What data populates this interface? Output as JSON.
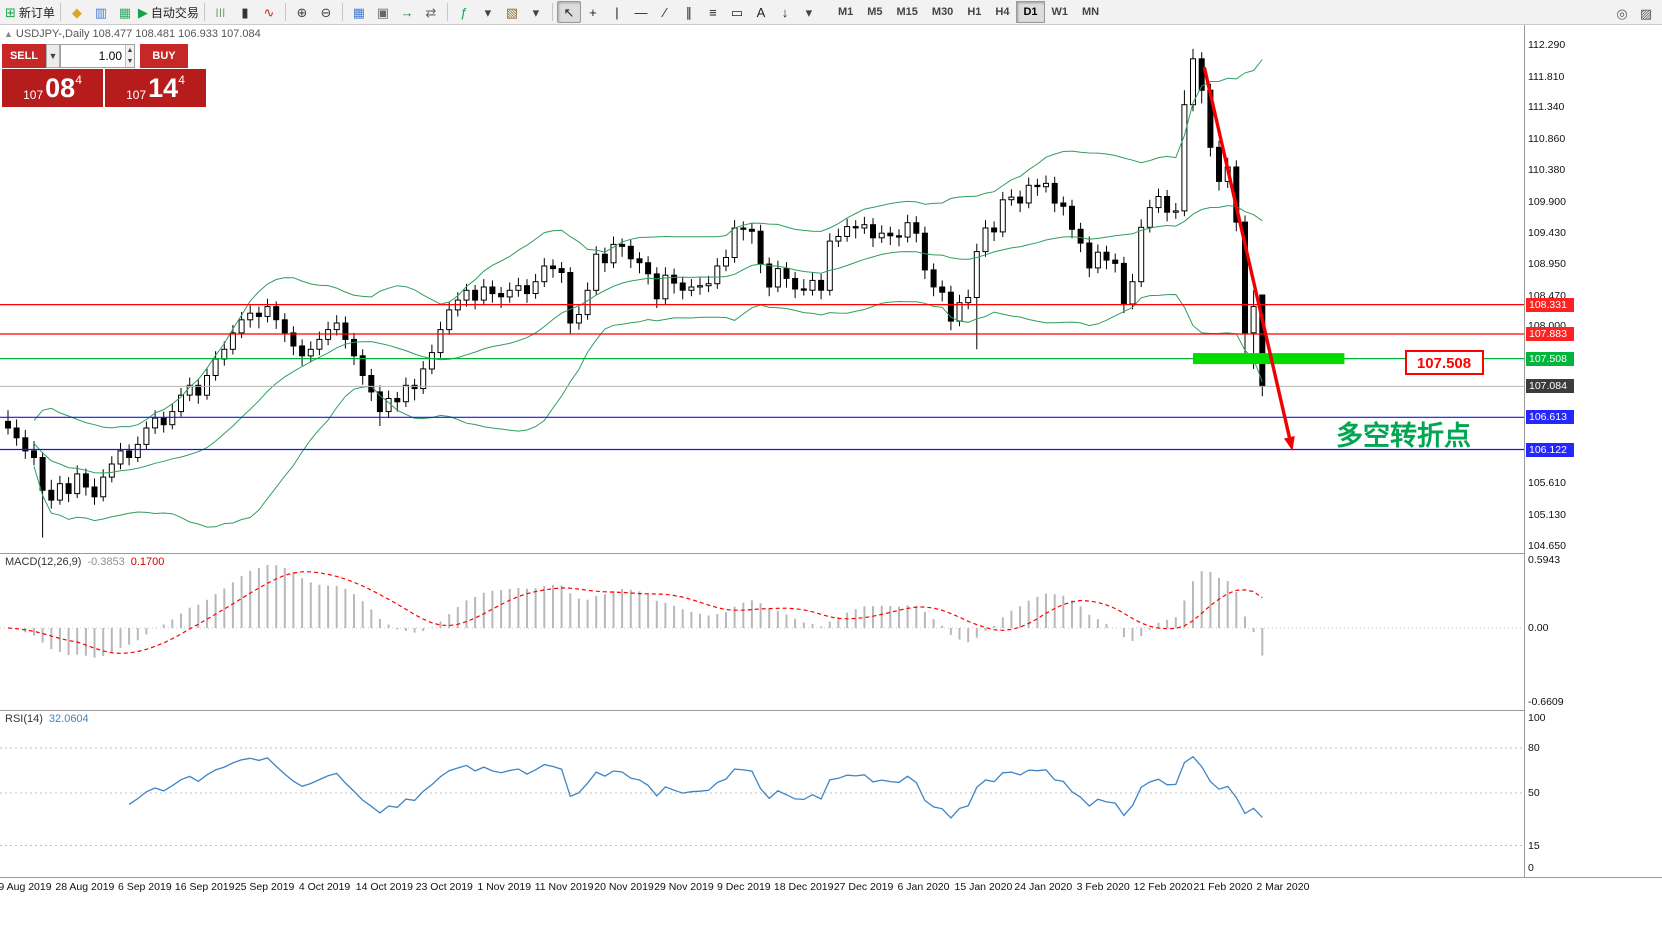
{
  "toolbar": {
    "new_order": {
      "icon_glyph": "⊞",
      "icon_color": "#18a348",
      "label": "新订单"
    },
    "autotrading": {
      "icon_glyph": "▶",
      "icon_color": "#18a348",
      "label": "自动交易"
    },
    "icon_groups": [
      [
        {
          "name": "profile-icon",
          "glyph": "◆",
          "color": "#d9a62b"
        },
        {
          "name": "market-watch-icon",
          "glyph": "▥",
          "color": "#4a7fd4"
        },
        {
          "name": "data-window-icon",
          "glyph": "▦",
          "color": "#3aa66a"
        }
      ],
      [
        {
          "name": "bar-chart-icon",
          "glyph": "|||",
          "color": "#2e7d32"
        },
        {
          "name": "candlestick-icon",
          "glyph": "▮",
          "color": "#333333"
        },
        {
          "name": "line-chart-icon",
          "glyph": "∿",
          "color": "#c62828"
        }
      ],
      [
        {
          "name": "zoom-in-icon",
          "glyph": "⊕",
          "color": "#444444"
        },
        {
          "name": "zoom-out-icon",
          "glyph": "⊖",
          "color": "#444444"
        }
      ],
      [
        {
          "name": "tile-windows-icon",
          "glyph": "▦",
          "color": "#4a7fd4"
        },
        {
          "name": "cascade-windows-icon",
          "glyph": "▣",
          "color": "#666666"
        },
        {
          "name": "auto-scroll-icon",
          "glyph": "→",
          "color": "#2e7d32"
        },
        {
          "name": "chart-shift-icon",
          "glyph": "⇄",
          "color": "#666666"
        }
      ],
      [
        {
          "name": "indicators-icon",
          "glyph": "ƒ",
          "color": "#18a348"
        },
        {
          "name": "indicators-dropdown-icon",
          "glyph": "▾",
          "color": "#444444"
        },
        {
          "name": "templates-icon",
          "glyph": "▧",
          "color": "#8a6d3b"
        },
        {
          "name": "templates-dropdown-icon",
          "glyph": "▾",
          "color": "#444444"
        }
      ],
      [
        {
          "name": "cursor-icon",
          "glyph": "↖",
          "color": "#222222",
          "active": true
        },
        {
          "name": "crosshair-icon",
          "glyph": "+",
          "color": "#222222"
        },
        {
          "name": "vertical-line-icon",
          "glyph": "|",
          "color": "#222222"
        },
        {
          "name": "horizontal-line-icon",
          "glyph": "—",
          "color": "#222222"
        },
        {
          "name": "trendline-icon",
          "glyph": "∕",
          "color": "#222222"
        },
        {
          "name": "channel-icon",
          "glyph": "∥",
          "color": "#222222"
        },
        {
          "name": "fibonacci-icon",
          "glyph": "≡",
          "color": "#222222"
        },
        {
          "name": "shapes-icon",
          "glyph": "▭",
          "color": "#222222"
        },
        {
          "name": "text-icon",
          "glyph": "A",
          "color": "#222222"
        },
        {
          "name": "arrows-icon",
          "glyph": "↓",
          "color": "#222222"
        },
        {
          "name": "objects-dropdown-icon",
          "glyph": "▾",
          "color": "#444444"
        }
      ]
    ],
    "right_icons": [
      {
        "name": "search-icon",
        "glyph": "◎",
        "color": "#555555"
      },
      {
        "name": "notes-icon",
        "glyph": "▨",
        "color": "#555555"
      }
    ],
    "timeframes": [
      "M1",
      "M5",
      "M15",
      "M30",
      "H1",
      "H4",
      "D1",
      "W1",
      "MN"
    ],
    "active_timeframe": "D1"
  },
  "symbol_header": {
    "marker": "▲",
    "text": "USDJPY-,Daily  108.477 108.481 106.933 107.084"
  },
  "trade_panel": {
    "sell_label": "SELL",
    "buy_label": "BUY",
    "dropdown_glyph": "▼",
    "spin_up_glyph": "▲",
    "spin_down_glyph": "▼",
    "volume": "1.00",
    "sell_price": {
      "prefix": "107",
      "big": "08",
      "sup": "4"
    },
    "buy_price": {
      "prefix": "107",
      "big": "14",
      "sup": "4"
    }
  },
  "chart_data": {
    "type": "candlestick",
    "symbol": "USDJPY-",
    "period": "Daily",
    "ohlc_display": {
      "open": "108.477",
      "high": "108.481",
      "low": "106.933",
      "close": "107.084"
    },
    "candles": [
      [
        106.55,
        106.72,
        106.35,
        106.45
      ],
      [
        106.45,
        106.58,
        106.18,
        106.3
      ],
      [
        106.3,
        106.42,
        105.98,
        106.1
      ],
      [
        106.1,
        106.25,
        105.88,
        106.0
      ],
      [
        106.0,
        106.08,
        104.78,
        105.5
      ],
      [
        105.5,
        105.66,
        105.22,
        105.35
      ],
      [
        105.35,
        105.72,
        105.28,
        105.6
      ],
      [
        105.6,
        105.7,
        105.32,
        105.45
      ],
      [
        105.45,
        105.88,
        105.38,
        105.75
      ],
      [
        105.75,
        105.83,
        105.42,
        105.55
      ],
      [
        105.55,
        105.68,
        105.28,
        105.4
      ],
      [
        105.4,
        105.82,
        105.33,
        105.7
      ],
      [
        105.7,
        106.02,
        105.62,
        105.9
      ],
      [
        105.9,
        106.22,
        105.82,
        106.1
      ],
      [
        106.1,
        106.2,
        105.88,
        106.0
      ],
      [
        106.0,
        106.32,
        105.93,
        106.2
      ],
      [
        106.2,
        106.55,
        106.12,
        106.45
      ],
      [
        106.45,
        106.72,
        106.36,
        106.6
      ],
      [
        106.6,
        106.7,
        106.38,
        106.5
      ],
      [
        106.5,
        106.82,
        106.43,
        106.7
      ],
      [
        106.7,
        107.06,
        106.62,
        106.95
      ],
      [
        106.95,
        107.22,
        106.86,
        107.1
      ],
      [
        107.1,
        107.2,
        106.82,
        106.95
      ],
      [
        106.95,
        107.36,
        106.88,
        107.25
      ],
      [
        107.25,
        107.62,
        107.17,
        107.5
      ],
      [
        107.5,
        107.77,
        107.4,
        107.65
      ],
      [
        107.65,
        108.02,
        107.57,
        107.9
      ],
      [
        107.9,
        108.22,
        107.82,
        108.1
      ],
      [
        108.1,
        108.32,
        107.98,
        108.2
      ],
      [
        108.2,
        108.3,
        107.97,
        108.15
      ],
      [
        108.15,
        108.42,
        108.06,
        108.3
      ],
      [
        108.3,
        108.38,
        107.96,
        108.1
      ],
      [
        108.1,
        108.2,
        107.76,
        107.9
      ],
      [
        107.9,
        108.0,
        107.56,
        107.7
      ],
      [
        107.7,
        107.8,
        107.4,
        107.55
      ],
      [
        107.55,
        107.77,
        107.45,
        107.65
      ],
      [
        107.65,
        107.92,
        107.56,
        107.8
      ],
      [
        107.8,
        108.07,
        107.71,
        107.95
      ],
      [
        107.95,
        108.17,
        107.86,
        108.05
      ],
      [
        108.05,
        108.15,
        107.66,
        107.8
      ],
      [
        107.8,
        107.9,
        107.41,
        107.55
      ],
      [
        107.55,
        107.65,
        107.11,
        107.25
      ],
      [
        107.25,
        107.35,
        106.86,
        107.0
      ],
      [
        107.0,
        107.1,
        106.48,
        106.7
      ],
      [
        106.7,
        107.02,
        106.6,
        106.9
      ],
      [
        106.9,
        107.0,
        106.7,
        106.85
      ],
      [
        106.85,
        107.22,
        106.77,
        107.1
      ],
      [
        107.1,
        107.2,
        106.87,
        107.05
      ],
      [
        107.05,
        107.47,
        106.97,
        107.35
      ],
      [
        107.35,
        107.72,
        107.27,
        107.6
      ],
      [
        107.6,
        108.07,
        107.52,
        107.95
      ],
      [
        107.95,
        108.37,
        107.87,
        108.25
      ],
      [
        108.25,
        108.52,
        108.15,
        108.4
      ],
      [
        108.4,
        108.65,
        108.3,
        108.55
      ],
      [
        108.55,
        108.63,
        108.26,
        108.4
      ],
      [
        108.4,
        108.72,
        108.32,
        108.6
      ],
      [
        108.6,
        108.7,
        108.36,
        108.5
      ],
      [
        108.5,
        108.6,
        108.28,
        108.45
      ],
      [
        108.45,
        108.67,
        108.36,
        108.55
      ],
      [
        108.55,
        108.74,
        108.45,
        108.62
      ],
      [
        108.62,
        108.72,
        108.36,
        108.5
      ],
      [
        108.5,
        108.8,
        108.42,
        108.68
      ],
      [
        108.68,
        109.04,
        108.6,
        108.92
      ],
      [
        108.92,
        109.02,
        108.74,
        108.88
      ],
      [
        108.88,
        108.98,
        108.66,
        108.82
      ],
      [
        108.82,
        108.9,
        107.89,
        108.05
      ],
      [
        108.05,
        108.3,
        107.95,
        108.18
      ],
      [
        108.18,
        108.67,
        108.1,
        108.55
      ],
      [
        108.55,
        109.22,
        108.47,
        109.1
      ],
      [
        109.1,
        109.2,
        108.83,
        108.97
      ],
      [
        108.97,
        109.37,
        108.89,
        109.25
      ],
      [
        109.25,
        109.34,
        109.06,
        109.22
      ],
      [
        109.22,
        109.32,
        108.89,
        109.03
      ],
      [
        109.03,
        109.13,
        108.81,
        108.97
      ],
      [
        108.97,
        109.07,
        108.64,
        108.8
      ],
      [
        108.8,
        108.9,
        108.28,
        108.42
      ],
      [
        108.42,
        108.9,
        108.34,
        108.78
      ],
      [
        108.78,
        108.88,
        108.5,
        108.66
      ],
      [
        108.66,
        108.76,
        108.41,
        108.55
      ],
      [
        108.55,
        108.72,
        108.46,
        108.6
      ],
      [
        108.6,
        108.74,
        108.48,
        108.62
      ],
      [
        108.62,
        108.77,
        108.52,
        108.65
      ],
      [
        108.65,
        109.04,
        108.57,
        108.92
      ],
      [
        108.92,
        109.17,
        108.84,
        109.05
      ],
      [
        109.05,
        109.62,
        108.97,
        109.5
      ],
      [
        109.5,
        109.6,
        109.31,
        109.48
      ],
      [
        109.48,
        109.58,
        109.26,
        109.45
      ],
      [
        109.45,
        109.55,
        108.81,
        108.95
      ],
      [
        108.95,
        109.05,
        108.46,
        108.6
      ],
      [
        108.6,
        109.0,
        108.52,
        108.88
      ],
      [
        108.88,
        108.98,
        108.59,
        108.73
      ],
      [
        108.73,
        108.83,
        108.43,
        108.57
      ],
      [
        108.57,
        108.72,
        108.47,
        108.55
      ],
      [
        108.55,
        108.82,
        108.47,
        108.7
      ],
      [
        108.7,
        108.8,
        108.41,
        108.55
      ],
      [
        108.55,
        109.42,
        108.47,
        109.3
      ],
      [
        109.3,
        109.49,
        109.21,
        109.37
      ],
      [
        109.37,
        109.64,
        109.29,
        109.52
      ],
      [
        109.52,
        109.62,
        109.34,
        109.5
      ],
      [
        109.5,
        109.67,
        109.41,
        109.55
      ],
      [
        109.55,
        109.65,
        109.21,
        109.35
      ],
      [
        109.35,
        109.54,
        109.27,
        109.42
      ],
      [
        109.42,
        109.52,
        109.24,
        109.38
      ],
      [
        109.38,
        109.48,
        109.22,
        109.36
      ],
      [
        109.36,
        109.7,
        109.28,
        109.58
      ],
      [
        109.58,
        109.68,
        109.28,
        109.42
      ],
      [
        109.42,
        109.52,
        108.72,
        108.86
      ],
      [
        108.86,
        108.96,
        108.46,
        108.6
      ],
      [
        108.6,
        108.7,
        108.38,
        108.52
      ],
      [
        108.52,
        108.62,
        107.94,
        108.08
      ],
      [
        108.08,
        108.48,
        108.0,
        108.36
      ],
      [
        108.36,
        108.56,
        108.26,
        108.44
      ],
      [
        108.44,
        109.26,
        107.65,
        109.14
      ],
      [
        109.14,
        109.62,
        109.06,
        109.5
      ],
      [
        109.5,
        109.6,
        109.3,
        109.44
      ],
      [
        109.44,
        110.05,
        109.36,
        109.93
      ],
      [
        109.93,
        110.09,
        109.84,
        109.97
      ],
      [
        109.97,
        110.07,
        109.74,
        109.88
      ],
      [
        109.88,
        110.27,
        109.8,
        110.15
      ],
      [
        110.15,
        110.25,
        109.99,
        110.13
      ],
      [
        110.13,
        110.3,
        110.04,
        110.18
      ],
      [
        110.18,
        110.28,
        109.74,
        109.88
      ],
      [
        109.88,
        109.98,
        109.69,
        109.83
      ],
      [
        109.83,
        109.93,
        109.34,
        109.48
      ],
      [
        109.48,
        109.58,
        109.13,
        109.27
      ],
      [
        109.27,
        109.37,
        108.75,
        108.89
      ],
      [
        108.89,
        109.25,
        108.81,
        109.13
      ],
      [
        109.13,
        109.23,
        108.87,
        109.01
      ],
      [
        109.01,
        109.11,
        108.82,
        108.96
      ],
      [
        108.96,
        109.06,
        108.2,
        108.34
      ],
      [
        108.34,
        108.8,
        108.26,
        108.68
      ],
      [
        108.68,
        109.63,
        108.6,
        109.51
      ],
      [
        109.51,
        109.93,
        109.43,
        109.81
      ],
      [
        109.81,
        110.1,
        109.73,
        109.98
      ],
      [
        109.98,
        110.08,
        109.6,
        109.74
      ],
      [
        109.74,
        109.88,
        109.64,
        109.76
      ],
      [
        109.76,
        111.6,
        109.68,
        111.38
      ],
      [
        111.38,
        112.23,
        111.28,
        112.08
      ],
      [
        112.08,
        112.18,
        111.4,
        111.6
      ],
      [
        111.6,
        111.7,
        110.59,
        110.73
      ],
      [
        110.73,
        110.83,
        110.07,
        110.21
      ],
      [
        110.21,
        110.57,
        110.11,
        110.43
      ],
      [
        110.43,
        110.53,
        109.45,
        109.59
      ],
      [
        109.59,
        109.69,
        107.5,
        107.9
      ],
      [
        107.9,
        108.55,
        107.35,
        108.3
      ],
      [
        108.477,
        108.481,
        106.933,
        107.084
      ]
    ],
    "overlays": {
      "bollinger": {
        "period": 20,
        "deviation": 2,
        "color": "#2e9e5e"
      },
      "hlines": [
        {
          "price": 108.331,
          "color": "#ff0000"
        },
        {
          "price": 107.883,
          "color": "#ff0000"
        },
        {
          "price": 107.508,
          "color": "#00b43c"
        },
        {
          "price": 106.613,
          "color": "#1414ff"
        },
        {
          "price": 106.122,
          "color": "#1414ff"
        }
      ],
      "current_price_line": {
        "price": 107.084,
        "color": "#b4b4b4"
      },
      "highlight_rect": {
        "price": 107.508,
        "from_idx": 137,
        "to_idx": 154.5,
        "color": "#00dc00"
      },
      "trend_arrow": {
        "from_idx": 138.3,
        "from_price": 111.95,
        "to_idx": 148.5,
        "to_price": 106.1,
        "color": "#f00000"
      },
      "price_label_box": {
        "text": "107.508",
        "color": "#ff0000"
      },
      "annotation": {
        "text": "多空转折点",
        "color": "#00a651"
      }
    },
    "y_axis": {
      "ticks": [
        "112.290",
        "111.810",
        "111.340",
        "110.860",
        "110.380",
        "109.900",
        "109.430",
        "108.950",
        "108.470",
        "108.000",
        "107.520",
        "107.040",
        "106.570",
        "106.090",
        "105.610",
        "105.130",
        "104.650"
      ],
      "badges": [
        {
          "price": 108.331,
          "label": "108.331",
          "color": "#ff2222"
        },
        {
          "price": 107.883,
          "label": "107.883",
          "color": "#ff2222"
        },
        {
          "price": 107.508,
          "label": "107.508",
          "color": "#00b43c"
        },
        {
          "price": 107.084,
          "label": "107.084",
          "color": "#3c3c3c"
        },
        {
          "price": 106.613,
          "label": "106.613",
          "color": "#2626ff"
        },
        {
          "price": 106.122,
          "label": "106.122",
          "color": "#2626ff"
        }
      ]
    },
    "x_axis": {
      "dates": [
        "9 Aug 2019",
        "28 Aug 2019",
        "6 Sep 2019",
        "16 Sep 2019",
        "25 Sep 2019",
        "4 Oct 2019",
        "14 Oct 2019",
        "23 Oct 2019",
        "1 Nov 2019",
        "11 Nov 2019",
        "20 Nov 2019",
        "29 Nov 2019",
        "9 Dec 2019",
        "18 Dec 2019",
        "27 Dec 2019",
        "6 Jan 2020",
        "15 Jan 2020",
        "24 Jan 2020",
        "3 Feb 2020",
        "12 Feb 2020",
        "21 Feb 2020",
        "2 Mar 2020"
      ]
    },
    "indicators": {
      "macd": {
        "label": "MACD(12,26,9)",
        "value_main": "-0.3853",
        "value_signal": "0.1700",
        "axis_labels": [
          "0.5943",
          "0.00",
          "-0.6609"
        ],
        "histogram_color": "#b8b8b8",
        "signal_color": "#ff0000"
      },
      "rsi": {
        "label": "RSI(14)",
        "value": "32.0604",
        "color": "#3d85c6",
        "axis_labels": [
          "100",
          "80",
          "50",
          "15",
          "0"
        ],
        "levels": [
          80,
          50,
          15
        ]
      }
    }
  }
}
